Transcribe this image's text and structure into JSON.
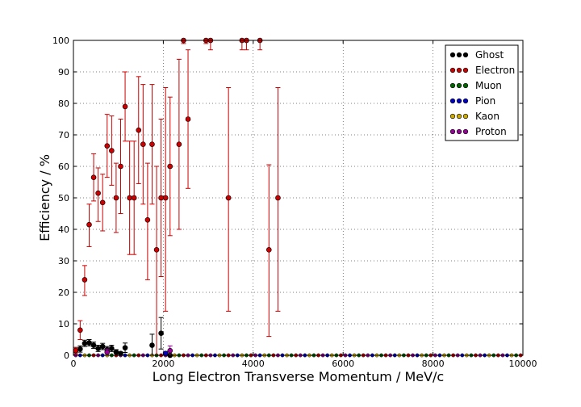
{
  "chart_data": {
    "type": "scatter",
    "title": "",
    "xlabel": "Long Electron Transverse Momentum / MeV/c",
    "ylabel": "Efficiency / %",
    "xlim": [
      0,
      10000
    ],
    "ylim": [
      0,
      100
    ],
    "xticks": [
      "0",
      "2000",
      "4000",
      "6000",
      "8000",
      "10000"
    ],
    "yticks": [
      "0",
      "10",
      "20",
      "30",
      "40",
      "50",
      "60",
      "70",
      "80",
      "90",
      "100"
    ],
    "grid": true,
    "legend_position": "top-right",
    "series": [
      {
        "name": "Ghost",
        "color": "#000000",
        "points": [
          [
            50,
            1.5,
            1,
            1
          ],
          [
            150,
            2,
            1,
            1
          ],
          [
            250,
            3.8,
            1,
            1
          ],
          [
            350,
            4,
            1,
            1
          ],
          [
            450,
            3.2,
            1,
            1
          ],
          [
            550,
            2.2,
            1,
            1
          ],
          [
            650,
            2.8,
            1,
            1
          ],
          [
            750,
            1.8,
            1,
            1
          ],
          [
            850,
            2.2,
            1,
            1
          ],
          [
            950,
            1,
            1,
            0.8
          ],
          [
            1050,
            0.6,
            0.6,
            0.5
          ],
          [
            1150,
            2.4,
            1.5,
            1.5
          ],
          [
            1750,
            3.2,
            3.2,
            3.5
          ],
          [
            1950,
            7,
            5,
            5
          ],
          [
            2150,
            0,
            0,
            0
          ]
        ]
      },
      {
        "name": "Electron",
        "color": "#cc0000",
        "points": [
          [
            50,
            1.5,
            1,
            1
          ],
          [
            150,
            8,
            3,
            3
          ],
          [
            250,
            24,
            5,
            4.5
          ],
          [
            350,
            41.5,
            7,
            6.5
          ],
          [
            450,
            56.5,
            7.5,
            7.5
          ],
          [
            550,
            51.5,
            9,
            8
          ],
          [
            650,
            48.5,
            9,
            9
          ],
          [
            750,
            66.5,
            10,
            10
          ],
          [
            850,
            65,
            11,
            11
          ],
          [
            950,
            50,
            11,
            11
          ],
          [
            1050,
            60,
            15,
            15
          ],
          [
            1150,
            79,
            11,
            11
          ],
          [
            1250,
            50,
            18,
            18
          ],
          [
            1350,
            50,
            18,
            18
          ],
          [
            1450,
            71.5,
            17,
            17
          ],
          [
            1550,
            67,
            19,
            19
          ],
          [
            1650,
            43,
            19,
            18
          ],
          [
            1750,
            67,
            19,
            19
          ],
          [
            1850,
            33.5,
            33.5,
            26.5
          ],
          [
            1950,
            50,
            25,
            25
          ],
          [
            2050,
            50,
            36,
            35
          ],
          [
            2150,
            60,
            22,
            22
          ],
          [
            2350,
            67,
            27,
            27
          ],
          [
            2450,
            100,
            1,
            0
          ],
          [
            2550,
            75,
            22,
            22
          ],
          [
            2950,
            100,
            1,
            0
          ],
          [
            3050,
            100,
            3,
            0
          ],
          [
            3450,
            50,
            36,
            35
          ],
          [
            3750,
            100,
            3,
            0
          ],
          [
            3850,
            100,
            3,
            0
          ],
          [
            4150,
            100,
            3,
            0
          ],
          [
            4350,
            33.5,
            27.5,
            27
          ],
          [
            4550,
            50,
            36,
            35
          ]
        ]
      },
      {
        "name": "Muon",
        "color": "#006600",
        "points": []
      },
      {
        "name": "Pion",
        "color": "#0000cc",
        "points": [
          [
            2050,
            0.6,
            0.6,
            0.6
          ]
        ]
      },
      {
        "name": "Kaon",
        "color": "#ccaa00",
        "points": []
      },
      {
        "name": "Proton",
        "color": "#990099",
        "points": [
          [
            750,
            1,
            1,
            1
          ],
          [
            2150,
            1.5,
            1.5,
            1.5
          ]
        ]
      }
    ]
  }
}
